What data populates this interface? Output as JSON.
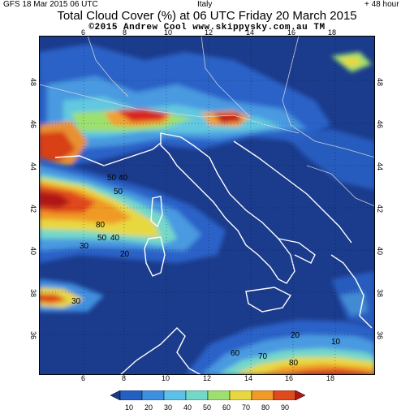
{
  "header": {
    "run_label": "GFS 18 Mar 2015 06 UTC",
    "region": "Italy",
    "forecast_hour": "+ 48 hour",
    "title": "Total Cloud Cover (%) at 06 UTC Friday 20 March 2015",
    "credit": "©2015 Andrew Cool  www.skippysky.com.au  TM"
  },
  "map": {
    "lon_ticks": [
      "6",
      "8",
      "10",
      "12",
      "14",
      "16",
      "18"
    ],
    "lat_ticks": [
      "48",
      "46",
      "44",
      "42",
      "40",
      "38",
      "36"
    ],
    "contour_labels": [
      "50",
      "40",
      "50",
      "80",
      "50",
      "40",
      "30",
      "20",
      "30",
      "20",
      "70",
      "80",
      "60",
      "10"
    ]
  },
  "legend": {
    "levels": [
      "10",
      "20",
      "30",
      "40",
      "50",
      "60",
      "70",
      "80",
      "90"
    ],
    "colors": [
      "#1a3a8a",
      "#2360c4",
      "#3f8fe0",
      "#5cc0e8",
      "#74d8c8",
      "#9ee070",
      "#e8d840",
      "#f09a28",
      "#e04a1c",
      "#b01818"
    ]
  }
}
